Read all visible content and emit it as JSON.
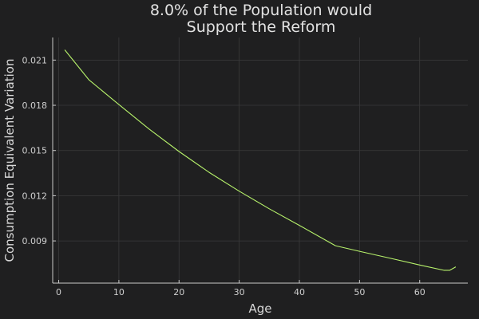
{
  "chart_data": {
    "type": "line",
    "title_lines": [
      "8.0% of the Population would",
      "Support the Reform"
    ],
    "xlabel": "Age",
    "ylabel": "Consumption Equivalent Variation",
    "xlim": [
      -1,
      68
    ],
    "ylim": [
      0.0062,
      0.0225
    ],
    "xticks": [
      0,
      10,
      20,
      30,
      40,
      50,
      60
    ],
    "xtick_labels": [
      "0",
      "10",
      "20",
      "30",
      "40",
      "50",
      "60"
    ],
    "yticks": [
      0.009,
      0.012,
      0.015,
      0.018,
      0.021
    ],
    "ytick_labels": [
      "0.009",
      "0.012",
      "0.015",
      "0.018",
      "0.021"
    ],
    "grid": true,
    "legend": "none",
    "series": [
      {
        "color": "#b7f26b",
        "x": [
          1,
          5,
          10,
          15,
          20,
          25,
          30,
          35,
          40,
          46,
          50,
          55,
          60,
          64,
          65,
          66
        ],
        "y": [
          0.02168,
          0.0197,
          0.01805,
          0.01643,
          0.01493,
          0.01355,
          0.0123,
          0.01113,
          0.01003,
          0.00868,
          0.00831,
          0.00786,
          0.0074,
          0.00705,
          0.00705,
          0.00728
        ]
      }
    ]
  }
}
